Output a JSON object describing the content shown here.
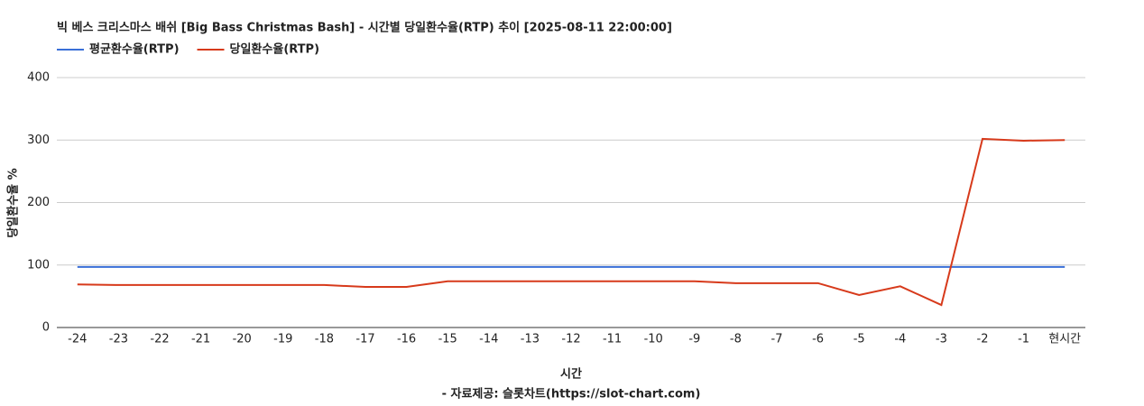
{
  "chart_data": {
    "type": "line",
    "title": "빅 베스 크리스마스 배쉬 [Big Bass Christmas Bash] - 시간별 당일환수율(RTP) 추이 [2025-08-11 22:00:00]",
    "x_label": "시간",
    "y_label": "당일환수율 %",
    "source": "- 자료제공: 슬롯차트(https://slot-chart.com)",
    "categories": [
      "-24",
      "-23",
      "-22",
      "-21",
      "-20",
      "-19",
      "-18",
      "-17",
      "-16",
      "-15",
      "-14",
      "-13",
      "-12",
      "-11",
      "-10",
      "-9",
      "-8",
      "-7",
      "-6",
      "-5",
      "-4",
      "-3",
      "-2",
      "-1",
      "현시간"
    ],
    "series": [
      {
        "name": "평균환수율(RTP)",
        "color": "#3a6fd8",
        "values": [
          97,
          97,
          97,
          97,
          97,
          97,
          97,
          97,
          97,
          97,
          97,
          97,
          97,
          97,
          97,
          97,
          97,
          97,
          97,
          97,
          97,
          97,
          97,
          97,
          97
        ]
      },
      {
        "name": "당일환수율(RTP)",
        "color": "#d73a1b",
        "values": [
          69,
          68,
          68,
          68,
          68,
          68,
          68,
          65,
          65,
          74,
          74,
          74,
          74,
          74,
          74,
          74,
          71,
          71,
          71,
          52,
          66,
          36,
          302,
          299,
          300
        ]
      }
    ],
    "ylim": [
      0,
      400
    ],
    "yticks": [
      0,
      100,
      200,
      300,
      400
    ],
    "grid": true,
    "legend": "top-left"
  }
}
